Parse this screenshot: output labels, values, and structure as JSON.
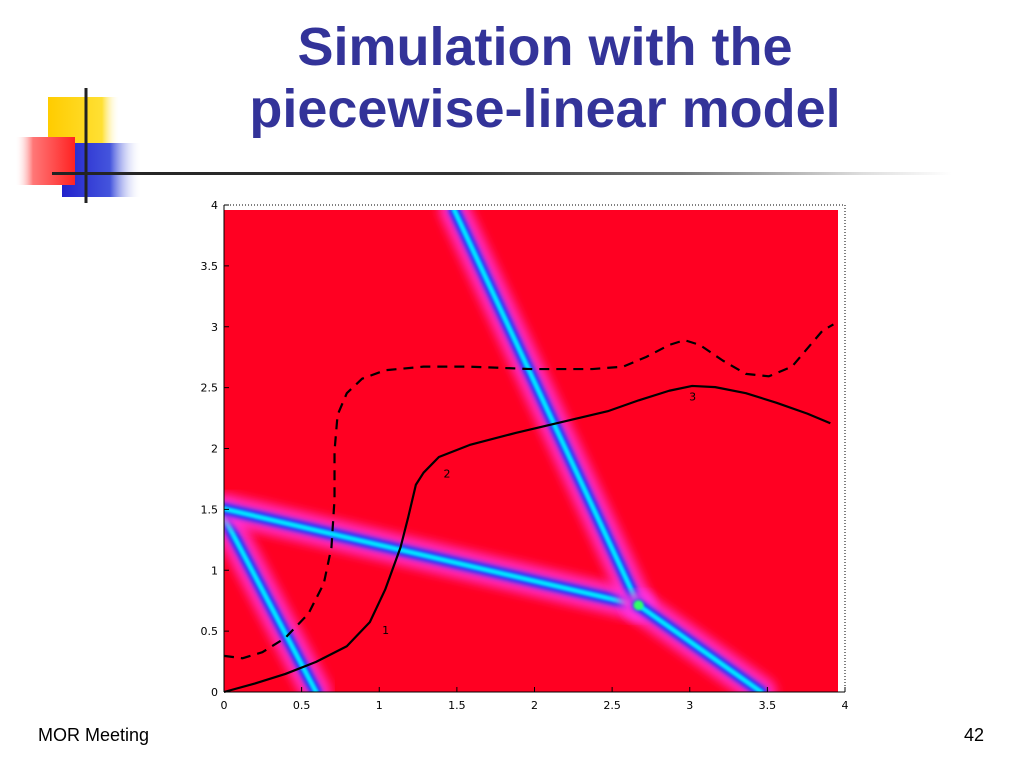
{
  "slide": {
    "title_line1": "Simulation with the",
    "title_line2": "piecewise-linear model",
    "footer_left": "MOR Meeting",
    "page_number": "42"
  },
  "colors": {
    "title": "#333399",
    "background_field": "#ff0022",
    "ridge_core": "#00e6ff",
    "ridge_edge": "#ff33dd",
    "curve": "#000000"
  },
  "chart_data": {
    "type": "heatmap",
    "title": "",
    "xlabel": "",
    "ylabel": "",
    "xlim": [
      0,
      4
    ],
    "ylim": [
      0,
      4
    ],
    "xticks": [
      "0",
      "0.5",
      "1",
      "1.5",
      "2",
      "2.5",
      "3",
      "3.5",
      "4"
    ],
    "yticks": [
      "0",
      "0.5",
      "1",
      "1.5",
      "2",
      "2.5",
      "3",
      "3.5",
      "4"
    ],
    "grid": false,
    "ridges": [
      {
        "x": [
          0.0,
          0.6
        ],
        "y": [
          1.45,
          0.0
        ]
      },
      {
        "x": [
          0.0,
          2.7
        ],
        "y": [
          1.52,
          0.72
        ]
      },
      {
        "x": [
          1.5,
          2.7
        ],
        "y": [
          4.0,
          0.72
        ]
      },
      {
        "x": [
          2.7,
          3.5
        ],
        "y": [
          0.72,
          0.0
        ]
      }
    ],
    "series": [
      {
        "style": "solid",
        "x": [
          0.0,
          0.2,
          0.4,
          0.6,
          0.8,
          0.95,
          1.05,
          1.15,
          1.2,
          1.25,
          1.3,
          1.4,
          1.6,
          1.9,
          2.2,
          2.5,
          2.7,
          2.9,
          3.05,
          3.2,
          3.4,
          3.6,
          3.8,
          3.95
        ],
        "y": [
          0.0,
          0.07,
          0.15,
          0.25,
          0.38,
          0.58,
          0.85,
          1.2,
          1.45,
          1.72,
          1.82,
          1.95,
          2.05,
          2.15,
          2.24,
          2.33,
          2.42,
          2.5,
          2.54,
          2.53,
          2.48,
          2.4,
          2.31,
          2.23
        ]
      },
      {
        "style": "dashed",
        "x": [
          0.0,
          0.12,
          0.25,
          0.4,
          0.55,
          0.65,
          0.7,
          0.72,
          0.72,
          0.74,
          0.8,
          0.9,
          1.05,
          1.3,
          1.6,
          2.0,
          2.4,
          2.6,
          2.75,
          2.9,
          3.0,
          3.1,
          3.25,
          3.4,
          3.55,
          3.7,
          3.8,
          3.9,
          3.97
        ],
        "y": [
          0.3,
          0.28,
          0.33,
          0.45,
          0.65,
          0.9,
          1.2,
          1.6,
          2.0,
          2.3,
          2.48,
          2.6,
          2.67,
          2.7,
          2.7,
          2.68,
          2.68,
          2.7,
          2.78,
          2.88,
          2.92,
          2.88,
          2.75,
          2.64,
          2.62,
          2.7,
          2.85,
          3.0,
          3.05
        ]
      }
    ],
    "curve_labels": [
      {
        "text": "1",
        "x": 1.03,
        "y": 0.48
      },
      {
        "text": "2",
        "x": 1.43,
        "y": 1.78
      },
      {
        "text": "3",
        "x": 3.03,
        "y": 2.42
      }
    ]
  }
}
